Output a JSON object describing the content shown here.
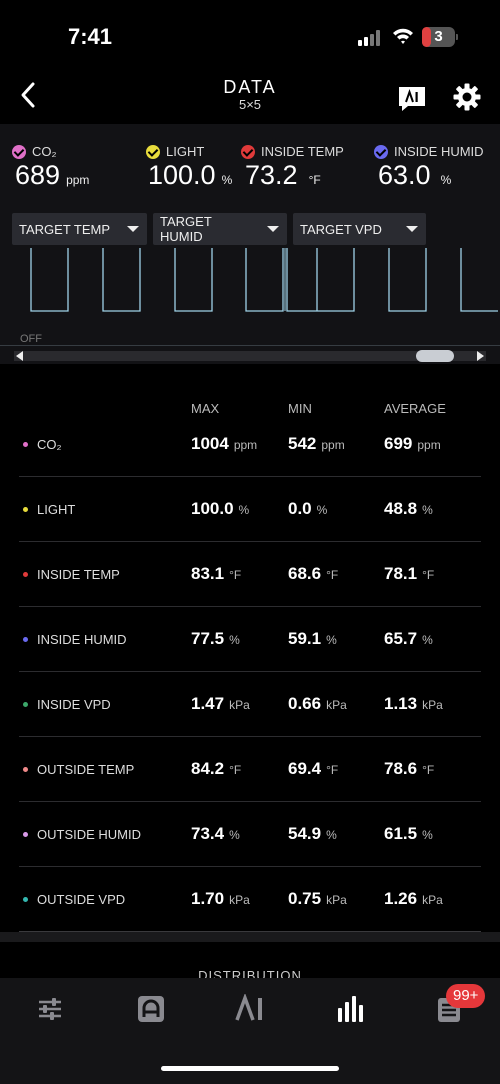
{
  "status": {
    "time": "7:41",
    "battery": "3"
  },
  "nav": {
    "title": "DATA",
    "subtitle": "5×5"
  },
  "sensors": [
    {
      "label": "CO₂",
      "value": "689",
      "unit": "ppm",
      "color": "#e070c8"
    },
    {
      "label": "LIGHT",
      "value": "100.0",
      "unit": "%",
      "color": "#e8dc3c"
    },
    {
      "label": "INSIDE TEMP",
      "value": "73.2",
      "unit": "°F",
      "color": "#e03a3a"
    },
    {
      "label": "INSIDE HUMID",
      "value": "63.0",
      "unit": "%",
      "color": "#6a6af0"
    }
  ],
  "dropdowns": [
    "TARGET TEMP",
    "TARGET HUMID",
    "TARGET VPD"
  ],
  "graph": {
    "off_label": "OFF"
  },
  "stats": {
    "columns": [
      "MAX",
      "MIN",
      "AVERAGE"
    ],
    "rows": [
      {
        "label": "CO₂",
        "color": "#e070c8",
        "max": "1004",
        "min": "542",
        "avg": "699",
        "unit": "ppm"
      },
      {
        "label": "LIGHT",
        "color": "#e8dc3c",
        "max": "100.0",
        "min": "0.0",
        "avg": "48.8",
        "unit": "%"
      },
      {
        "label": "INSIDE TEMP",
        "color": "#e03a3a",
        "max": "83.1",
        "min": "68.6",
        "avg": "78.1",
        "unit": "°F"
      },
      {
        "label": "INSIDE HUMID",
        "color": "#6a6af0",
        "max": "77.5",
        "min": "59.1",
        "avg": "65.7",
        "unit": "%"
      },
      {
        "label": "INSIDE VPD",
        "color": "#3ca86a",
        "max": "1.47",
        "min": "0.66",
        "avg": "1.13",
        "unit": "kPa"
      },
      {
        "label": "OUTSIDE TEMP",
        "color": "#f08a8a",
        "max": "84.2",
        "min": "69.4",
        "avg": "78.6",
        "unit": "°F"
      },
      {
        "label": "OUTSIDE HUMID",
        "color": "#d89ae8",
        "max": "73.4",
        "min": "54.9",
        "avg": "61.5",
        "unit": "%"
      },
      {
        "label": "OUTSIDE VPD",
        "color": "#34b8b0",
        "max": "1.70",
        "min": "0.75",
        "avg": "1.26",
        "unit": "kPa"
      }
    ]
  },
  "distribution_title": "DISTRIBUTION",
  "tabbar": {
    "items": [
      "sliders-icon",
      "controller-icon",
      "ai-icon",
      "bar-chart-icon",
      "list-icon"
    ],
    "badge": "99+"
  }
}
